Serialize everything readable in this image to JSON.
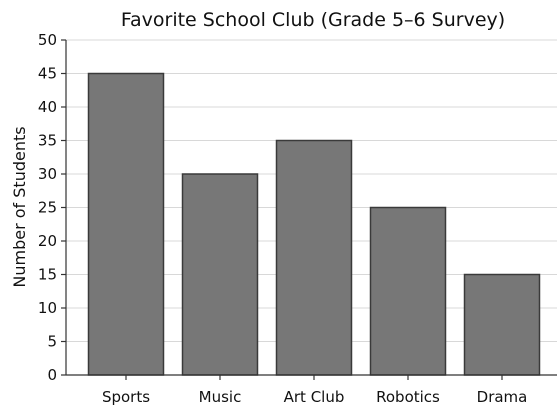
{
  "chart_data": {
    "type": "bar",
    "title": "Favorite School Club (Grade 5–6 Survey)",
    "xlabel": "",
    "ylabel": "Number of Students",
    "categories": [
      "Sports",
      "Music",
      "Art Club",
      "Robotics",
      "Drama"
    ],
    "values": [
      45,
      30,
      35,
      25,
      15
    ],
    "ylim": [
      0,
      50
    ],
    "yticks": [
      0,
      5,
      10,
      15,
      20,
      25,
      30,
      35,
      40,
      45,
      50
    ],
    "grid": true,
    "grid_axis": "y",
    "legend": "none",
    "colors": {
      "bar_fill": "#777777",
      "bar_edge": "#3a3a3a",
      "grid": "#d8d8d8"
    }
  }
}
